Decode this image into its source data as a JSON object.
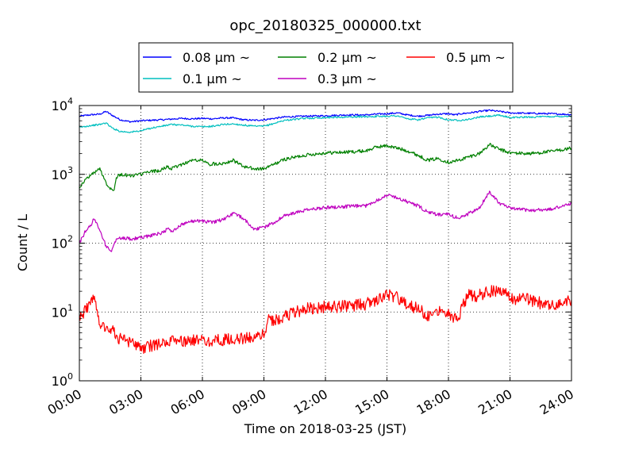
{
  "chart_data": {
    "type": "line",
    "title": "opc_20180325_000000.txt",
    "xlabel": "Time on 2018-03-25 (JST)",
    "ylabel": "Count / L",
    "y_scale": "log",
    "ylim": [
      1,
      10000
    ],
    "xlim_hours": [
      0,
      24
    ],
    "grid": true,
    "grid_style": "dotted",
    "legend_placement": "top-center (above plot)",
    "x_ticks": [
      {
        "hour": 0,
        "label": "00:00"
      },
      {
        "hour": 3,
        "label": "03:00"
      },
      {
        "hour": 6,
        "label": "06:00"
      },
      {
        "hour": 9,
        "label": "09:00"
      },
      {
        "hour": 12,
        "label": "12:00"
      },
      {
        "hour": 15,
        "label": "15:00"
      },
      {
        "hour": 18,
        "label": "18:00"
      },
      {
        "hour": 21,
        "label": "21:00"
      },
      {
        "hour": 24,
        "label": "24:00"
      }
    ],
    "y_ticks": [
      {
        "value": 1,
        "base": "10",
        "exp": "0"
      },
      {
        "value": 10,
        "base": "10",
        "exp": "1"
      },
      {
        "value": 100,
        "base": "10",
        "exp": "2"
      },
      {
        "value": 1000,
        "base": "10",
        "exp": "3"
      },
      {
        "value": 10000,
        "base": "10",
        "exp": "4"
      }
    ],
    "series": [
      {
        "name": "0.08 μm ~",
        "legend_size": "0.08",
        "color": "#0000ff",
        "points": [
          [
            0,
            7000
          ],
          [
            0.5,
            7300
          ],
          [
            1,
            7500
          ],
          [
            1.3,
            8200
          ],
          [
            1.6,
            7200
          ],
          [
            2,
            6200
          ],
          [
            2.5,
            5800
          ],
          [
            3,
            6000
          ],
          [
            4,
            6200
          ],
          [
            5,
            6500
          ],
          [
            5.5,
            6400
          ],
          [
            6,
            6500
          ],
          [
            6.5,
            6400
          ],
          [
            7,
            6600
          ],
          [
            7.5,
            6600
          ],
          [
            8,
            6200
          ],
          [
            8.5,
            6100
          ],
          [
            9,
            6200
          ],
          [
            9.5,
            6500
          ],
          [
            10,
            6800
          ],
          [
            11,
            7000
          ],
          [
            12,
            7100
          ],
          [
            13,
            7300
          ],
          [
            14,
            7300
          ],
          [
            14.5,
            7500
          ],
          [
            15,
            7600
          ],
          [
            15.5,
            7800
          ],
          [
            16,
            7300
          ],
          [
            16.5,
            7000
          ],
          [
            17,
            7200
          ],
          [
            17.5,
            7500
          ],
          [
            18,
            7600
          ],
          [
            18.3,
            7300
          ],
          [
            18.6,
            7600
          ],
          [
            19,
            7800
          ],
          [
            19.5,
            8200
          ],
          [
            20,
            8500
          ],
          [
            20.5,
            8200
          ],
          [
            21,
            7800
          ],
          [
            22,
            7700
          ],
          [
            23,
            7600
          ],
          [
            24,
            7400
          ]
        ]
      },
      {
        "name": "0.1 μm ~",
        "legend_size": "0.1",
        "color": "#00bfbf",
        "points": [
          [
            0,
            4800
          ],
          [
            0.5,
            5100
          ],
          [
            1,
            5300
          ],
          [
            1.3,
            5600
          ],
          [
            1.6,
            4700
          ],
          [
            2,
            4200
          ],
          [
            2.5,
            4100
          ],
          [
            3,
            4300
          ],
          [
            3.5,
            4700
          ],
          [
            4,
            5000
          ],
          [
            4.5,
            5300
          ],
          [
            5,
            5200
          ],
          [
            5.5,
            5000
          ],
          [
            6,
            4900
          ],
          [
            6.5,
            5000
          ],
          [
            7,
            5300
          ],
          [
            7.5,
            5400
          ],
          [
            8,
            5200
          ],
          [
            8.5,
            5000
          ],
          [
            9,
            5000
          ],
          [
            9.5,
            5500
          ],
          [
            10,
            6100
          ],
          [
            11,
            6500
          ],
          [
            12,
            6700
          ],
          [
            13,
            6800
          ],
          [
            14,
            6900
          ],
          [
            15,
            7000
          ],
          [
            15.5,
            7100
          ],
          [
            16,
            6400
          ],
          [
            16.5,
            6200
          ],
          [
            17,
            6600
          ],
          [
            17.5,
            6800
          ],
          [
            18,
            6200
          ],
          [
            18.5,
            6100
          ],
          [
            19,
            6300
          ],
          [
            19.5,
            6800
          ],
          [
            20,
            7000
          ],
          [
            20.5,
            7200
          ],
          [
            21,
            6700
          ],
          [
            22,
            6800
          ],
          [
            23,
            6900
          ],
          [
            24,
            7000
          ]
        ]
      },
      {
        "name": "0.2 μm ~",
        "legend_size": "0.2",
        "color": "#008000",
        "points": [
          [
            0,
            650
          ],
          [
            0.4,
            900
          ],
          [
            0.8,
            1100
          ],
          [
            1,
            1200
          ],
          [
            1.2,
            900
          ],
          [
            1.4,
            650
          ],
          [
            1.6,
            620
          ],
          [
            1.7,
            600
          ],
          [
            1.8,
            900
          ],
          [
            2,
            1000
          ],
          [
            2.5,
            950
          ],
          [
            3,
            1000
          ],
          [
            3.5,
            1100
          ],
          [
            4,
            1150
          ],
          [
            4.3,
            1300
          ],
          [
            4.5,
            1200
          ],
          [
            5,
            1400
          ],
          [
            5.5,
            1600
          ],
          [
            6,
            1600
          ],
          [
            6.3,
            1400
          ],
          [
            7,
            1450
          ],
          [
            7.5,
            1600
          ],
          [
            8,
            1300
          ],
          [
            8.5,
            1200
          ],
          [
            9,
            1200
          ],
          [
            9.5,
            1400
          ],
          [
            10,
            1650
          ],
          [
            11,
            1900
          ],
          [
            12,
            2050
          ],
          [
            13,
            2100
          ],
          [
            14,
            2200
          ],
          [
            14.5,
            2500
          ],
          [
            15,
            2600
          ],
          [
            15.5,
            2400
          ],
          [
            16,
            2200
          ],
          [
            16.5,
            1900
          ],
          [
            17,
            1600
          ],
          [
            17.5,
            1700
          ],
          [
            18,
            1500
          ],
          [
            18.5,
            1600
          ],
          [
            19,
            1800
          ],
          [
            19.5,
            2000
          ],
          [
            20,
            2700
          ],
          [
            20.5,
            2300
          ],
          [
            21,
            2050
          ],
          [
            22,
            2000
          ],
          [
            23,
            2150
          ],
          [
            24,
            2400
          ]
        ]
      },
      {
        "name": "0.3 μm ~",
        "legend_size": "0.3",
        "color": "#bf00bf",
        "points": [
          [
            0,
            100
          ],
          [
            0.3,
            150
          ],
          [
            0.6,
            190
          ],
          [
            0.7,
            230
          ],
          [
            0.9,
            180
          ],
          [
            1.1,
            130
          ],
          [
            1.3,
            90
          ],
          [
            1.5,
            78
          ],
          [
            1.6,
            80
          ],
          [
            1.8,
            115
          ],
          [
            2,
            120
          ],
          [
            2.5,
            115
          ],
          [
            3,
            120
          ],
          [
            3.5,
            130
          ],
          [
            4,
            140
          ],
          [
            4.3,
            160
          ],
          [
            4.6,
            150
          ],
          [
            5,
            190
          ],
          [
            5.5,
            210
          ],
          [
            6,
            210
          ],
          [
            6.5,
            200
          ],
          [
            7,
            220
          ],
          [
            7.5,
            270
          ],
          [
            8,
            230
          ],
          [
            8.5,
            160
          ],
          [
            9,
            170
          ],
          [
            9.5,
            200
          ],
          [
            10,
            250
          ],
          [
            11,
            300
          ],
          [
            12,
            330
          ],
          [
            13,
            340
          ],
          [
            14,
            350
          ],
          [
            14.5,
            420
          ],
          [
            15,
            500
          ],
          [
            15.3,
            480
          ],
          [
            16,
            400
          ],
          [
            16.5,
            350
          ],
          [
            17,
            280
          ],
          [
            17.5,
            260
          ],
          [
            18,
            260
          ],
          [
            18.5,
            230
          ],
          [
            19,
            270
          ],
          [
            19.5,
            320
          ],
          [
            20,
            560
          ],
          [
            20.5,
            380
          ],
          [
            21,
            320
          ],
          [
            22,
            300
          ],
          [
            23,
            310
          ],
          [
            24,
            380
          ]
        ]
      },
      {
        "name": "0.5 μm ~",
        "legend_size": "0.5",
        "color": "#ff0000",
        "points": [
          [
            0,
            8
          ],
          [
            0.3,
            11
          ],
          [
            0.6,
            14
          ],
          [
            0.8,
            15
          ],
          [
            0.9,
            10
          ],
          [
            1,
            7
          ],
          [
            1.3,
            6
          ],
          [
            1.6,
            5.5
          ],
          [
            2,
            4
          ],
          [
            2.5,
            3.5
          ],
          [
            3,
            3
          ],
          [
            3.5,
            3.2
          ],
          [
            4,
            3.5
          ],
          [
            5,
            3.8
          ],
          [
            6,
            3.8
          ],
          [
            7,
            3.9
          ],
          [
            8,
            4.1
          ],
          [
            8.5,
            4.3
          ],
          [
            9,
            4.8
          ],
          [
            9.2,
            8
          ],
          [
            9.5,
            7.5
          ],
          [
            10,
            8.5
          ],
          [
            10.5,
            10
          ],
          [
            11,
            11
          ],
          [
            12,
            12
          ],
          [
            13,
            12
          ],
          [
            14,
            13
          ],
          [
            14.5,
            15
          ],
          [
            15,
            18
          ],
          [
            15.5,
            16
          ],
          [
            16,
            13
          ],
          [
            16.5,
            11
          ],
          [
            17,
            9
          ],
          [
            17.5,
            11
          ],
          [
            18,
            10
          ],
          [
            18.3,
            8
          ],
          [
            18.6,
            10
          ],
          [
            19,
            20
          ],
          [
            19.3,
            16
          ],
          [
            19.6,
            18
          ],
          [
            20,
            20
          ],
          [
            20.5,
            21
          ],
          [
            21,
            16
          ],
          [
            22,
            15
          ],
          [
            23,
            12
          ],
          [
            24,
            15
          ]
        ]
      }
    ]
  }
}
